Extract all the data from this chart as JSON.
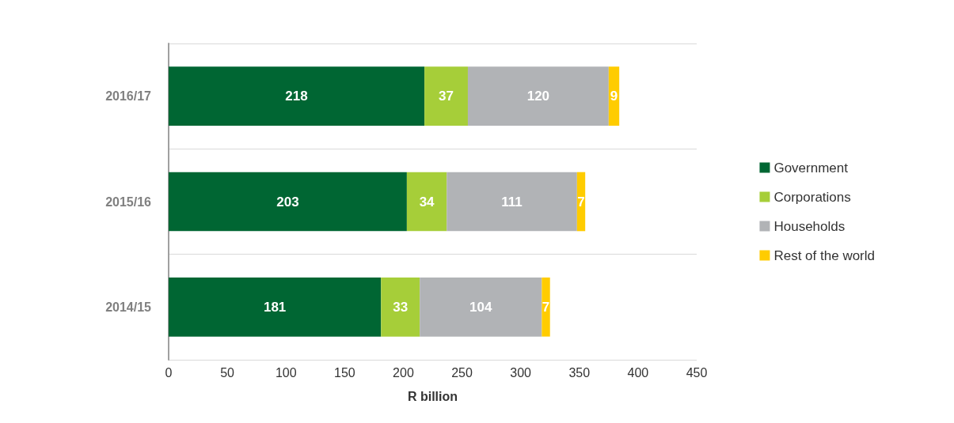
{
  "chart_data": {
    "type": "bar",
    "orientation": "horizontal",
    "stacked": true,
    "xlabel": "R billion",
    "categories": [
      "2016/17",
      "2015/16",
      "2014/15"
    ],
    "series": [
      {
        "name": "Government",
        "color": "#006633",
        "values": [
          218,
          203,
          181
        ]
      },
      {
        "name": "Corporations",
        "color": "#a6ce39",
        "values": [
          37,
          34,
          33
        ]
      },
      {
        "name": "Households",
        "color": "#b1b3b6",
        "values": [
          120,
          111,
          104
        ]
      },
      {
        "name": "Rest of the world",
        "color": "#ffcc00",
        "values": [
          9,
          7,
          7
        ]
      }
    ],
    "xlim": [
      0,
      450
    ],
    "xticks": [
      0,
      50,
      100,
      150,
      200,
      250,
      300,
      350,
      400,
      450
    ],
    "grid": "y",
    "legend": "right",
    "data_labels": true
  }
}
